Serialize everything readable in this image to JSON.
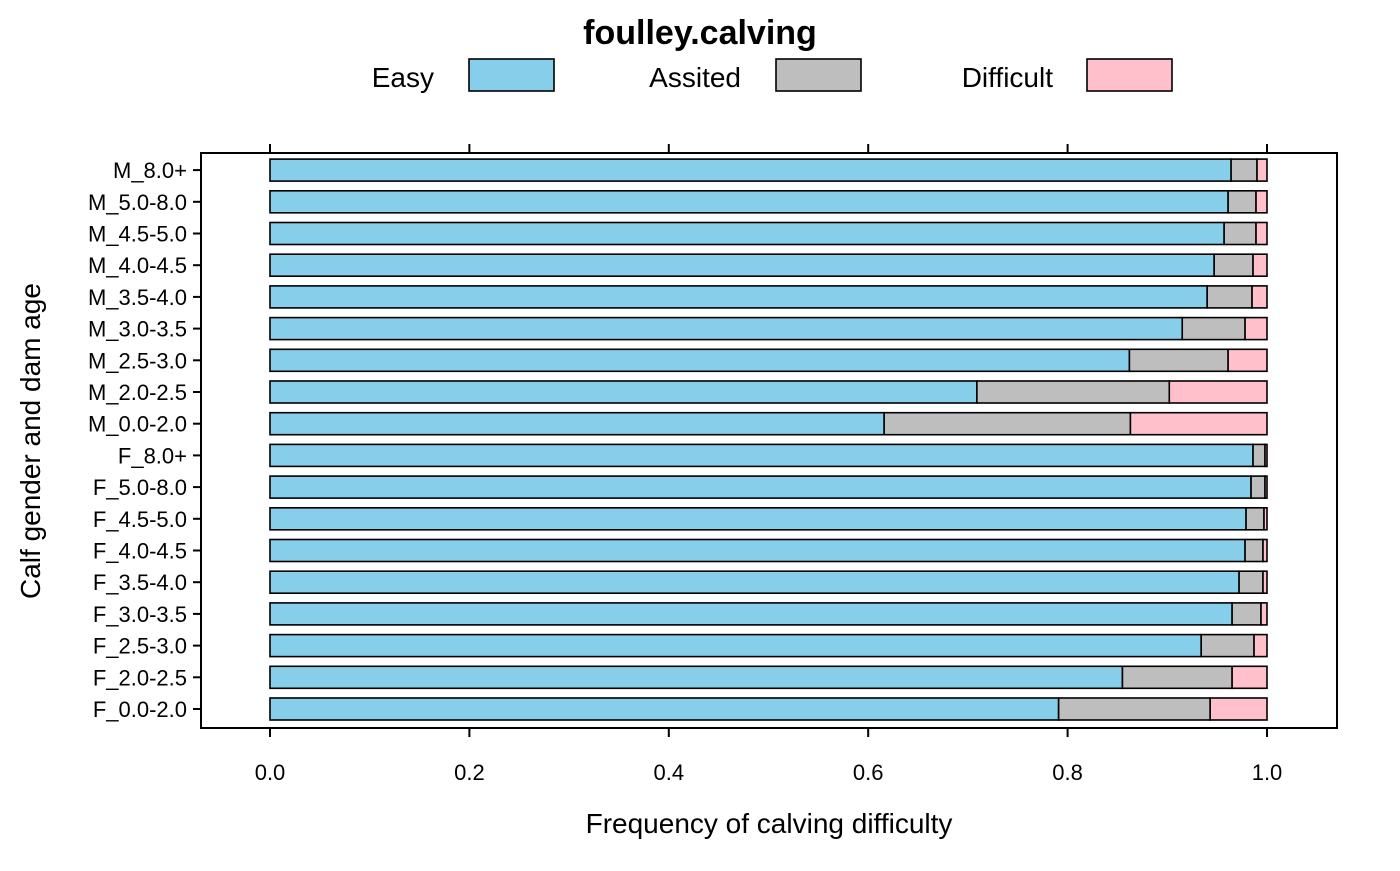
{
  "chart_data": {
    "type": "bar",
    "orientation": "horizontal",
    "stacked": true,
    "title": "foulley.calving",
    "xlabel": "Frequency of calving difficulty",
    "ylabel": "Calf gender and dam age",
    "xlim": [
      -0.07,
      1.07
    ],
    "xticks": [
      "0.0",
      "0.2",
      "0.4",
      "0.6",
      "0.8",
      "1.0"
    ],
    "xtick_values": [
      0,
      0.2,
      0.4,
      0.6,
      0.8,
      1.0
    ],
    "legend_position": "top",
    "grid": false,
    "categories": [
      "F_0.0-2.0",
      "F_2.0-2.5",
      "F_2.5-3.0",
      "F_3.0-3.5",
      "F_3.5-4.0",
      "F_4.0-4.5",
      "F_4.5-5.0",
      "F_5.0-8.0",
      "F_8.0+",
      "M_0.0-2.0",
      "M_2.0-2.5",
      "M_2.5-3.0",
      "M_3.0-3.5",
      "M_3.5-4.0",
      "M_4.0-4.5",
      "M_4.5-5.0",
      "M_5.0-8.0",
      "M_8.0+"
    ],
    "series": [
      {
        "name": "Easy",
        "color": "#87ceeb",
        "values": [
          0.791,
          0.855,
          0.934,
          0.965,
          0.972,
          0.978,
          0.979,
          0.984,
          0.986,
          0.616,
          0.709,
          0.862,
          0.915,
          0.94,
          0.947,
          0.957,
          0.961,
          0.964
        ]
      },
      {
        "name": "Assited",
        "color": "#bebebe",
        "values": [
          0.152,
          0.11,
          0.053,
          0.029,
          0.024,
          0.018,
          0.018,
          0.014,
          0.012,
          0.247,
          0.193,
          0.099,
          0.063,
          0.045,
          0.039,
          0.032,
          0.028,
          0.026
        ]
      },
      {
        "name": "Difficult",
        "color": "#ffc0cb",
        "values": [
          0.057,
          0.035,
          0.013,
          0.006,
          0.004,
          0.004,
          0.003,
          0.002,
          0.002,
          0.137,
          0.098,
          0.039,
          0.022,
          0.015,
          0.014,
          0.011,
          0.011,
          0.01
        ]
      }
    ]
  }
}
